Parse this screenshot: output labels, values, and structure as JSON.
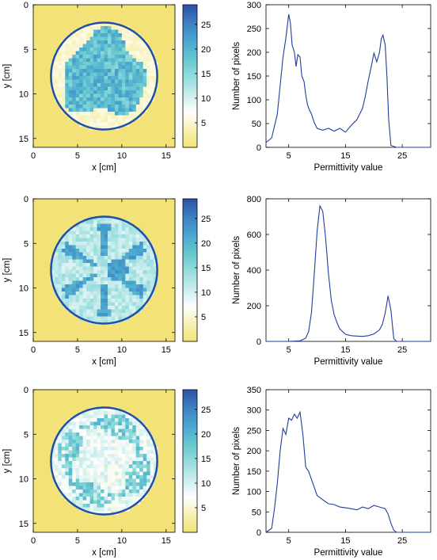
{
  "colors": {
    "cmap": [
      "#f0e376",
      "#f7f1b2",
      "#fefefe",
      "#c9ecec",
      "#93dcdc",
      "#65c6cf",
      "#4aa7cf",
      "#3f80c3",
      "#2c52a6"
    ],
    "background": "#f2e278",
    "circle": "#1f4ea8",
    "line": "#1f3e9a"
  },
  "chart_data": [
    {
      "type": "heatmap",
      "xlabel": "x [cm]",
      "ylabel": "y [cm]",
      "xlim": [
        0,
        16
      ],
      "ylim": [
        0,
        16
      ],
      "xticks": [
        0,
        5,
        10,
        15
      ],
      "yticks": [
        0,
        5,
        10,
        15
      ],
      "colorbar": {
        "ticks": [
          5,
          10,
          15,
          20,
          25
        ],
        "range": [
          0,
          29
        ]
      },
      "phantom": {
        "cx": 8,
        "cy": 8,
        "r": 6,
        "background": 1.8,
        "fat": 5,
        "gland": 18,
        "pattern": "blob"
      }
    },
    {
      "type": "line",
      "xlabel": "Permittivity value",
      "ylabel": "Number of pixels",
      "xlim": [
        1,
        30
      ],
      "ylim": [
        0,
        300
      ],
      "xticks": [
        5,
        15,
        25
      ],
      "yticks": [
        0,
        50,
        100,
        150,
        200,
        250,
        300
      ],
      "x": [
        1,
        2,
        3,
        3.5,
        4,
        4.5,
        5,
        5.3,
        5.6,
        6,
        6.3,
        6.6,
        7,
        7.3,
        7.7,
        8,
        8.3,
        8.6,
        9,
        9.5,
        10,
        11,
        12,
        13,
        14,
        15,
        16,
        17,
        18,
        18.5,
        19,
        19.5,
        20,
        20.5,
        21,
        21.3,
        21.6,
        22,
        22.3,
        22.6,
        23,
        24,
        26,
        30
      ],
      "y": [
        10,
        20,
        70,
        130,
        190,
        230,
        280,
        262,
        215,
        200,
        170,
        195,
        190,
        150,
        138,
        110,
        90,
        80,
        70,
        52,
        40,
        36,
        40,
        34,
        40,
        32,
        46,
        58,
        82,
        108,
        140,
        168,
        198,
        180,
        200,
        228,
        236,
        215,
        148,
        60,
        4,
        0,
        0,
        0
      ]
    },
    {
      "type": "heatmap",
      "xlabel": "x [cm]",
      "ylabel": "y [cm]",
      "xlim": [
        0,
        16
      ],
      "ylim": [
        0,
        16
      ],
      "xticks": [
        0,
        5,
        10,
        15
      ],
      "yticks": [
        0,
        5,
        10,
        15
      ],
      "colorbar": {
        "ticks": [
          5,
          10,
          15,
          20,
          25
        ],
        "range": [
          0,
          29
        ]
      },
      "phantom": {
        "cx": 8,
        "cy": 8,
        "r": 6,
        "background": 1.8,
        "fat": 11,
        "gland": 22,
        "pattern": "star"
      }
    },
    {
      "type": "line",
      "xlabel": "Permittivity value",
      "ylabel": "Number of pixels",
      "xlim": [
        1,
        30
      ],
      "ylim": [
        0,
        800
      ],
      "xticks": [
        5,
        15,
        25
      ],
      "yticks": [
        0,
        200,
        400,
        600,
        800
      ],
      "x": [
        1,
        5,
        7,
        8,
        8.5,
        9,
        9.5,
        10,
        10.5,
        11,
        11.5,
        12,
        12.5,
        13,
        13.5,
        14,
        15,
        16,
        17,
        18,
        19,
        20,
        21,
        21.5,
        22,
        22.5,
        23,
        23.5,
        24,
        26,
        30
      ],
      "y": [
        0,
        0,
        3,
        18,
        55,
        160,
        380,
        620,
        760,
        730,
        580,
        380,
        230,
        150,
        105,
        70,
        40,
        32,
        30,
        28,
        32,
        42,
        65,
        95,
        160,
        255,
        175,
        15,
        0,
        0,
        0
      ]
    },
    {
      "type": "heatmap",
      "xlabel": "x [cm]",
      "ylabel": "y [cm]",
      "xlim": [
        0,
        16
      ],
      "ylim": [
        0,
        16
      ],
      "xticks": [
        0,
        5,
        10,
        15
      ],
      "yticks": [
        0,
        5,
        10,
        15
      ],
      "colorbar": {
        "ticks": [
          5,
          10,
          15,
          20,
          25
        ],
        "range": [
          0,
          29
        ]
      },
      "phantom": {
        "cx": 8,
        "cy": 8,
        "r": 6,
        "background": 1.8,
        "fat": 8,
        "gland": 18,
        "pattern": "ring"
      }
    },
    {
      "type": "line",
      "xlabel": "Permittivity value",
      "ylabel": "Number of pixels",
      "xlim": [
        1,
        30
      ],
      "ylim": [
        0,
        350
      ],
      "xticks": [
        5,
        15,
        25
      ],
      "yticks": [
        0,
        50,
        100,
        150,
        200,
        250,
        300,
        350
      ],
      "x": [
        1,
        2,
        2.5,
        3,
        3.5,
        4,
        4.5,
        5,
        5.5,
        6,
        6.5,
        7,
        7.5,
        8,
        8.5,
        9,
        9.5,
        10,
        11,
        12,
        13,
        14,
        15,
        16,
        17,
        18,
        19,
        20,
        21,
        22,
        22.5,
        23,
        23.5,
        24,
        26,
        30
      ],
      "y": [
        0,
        10,
        60,
        120,
        200,
        255,
        240,
        280,
        275,
        290,
        280,
        295,
        240,
        160,
        150,
        130,
        110,
        90,
        80,
        70,
        68,
        62,
        60,
        58,
        55,
        62,
        58,
        66,
        62,
        58,
        45,
        22,
        5,
        0,
        0,
        0
      ]
    }
  ]
}
